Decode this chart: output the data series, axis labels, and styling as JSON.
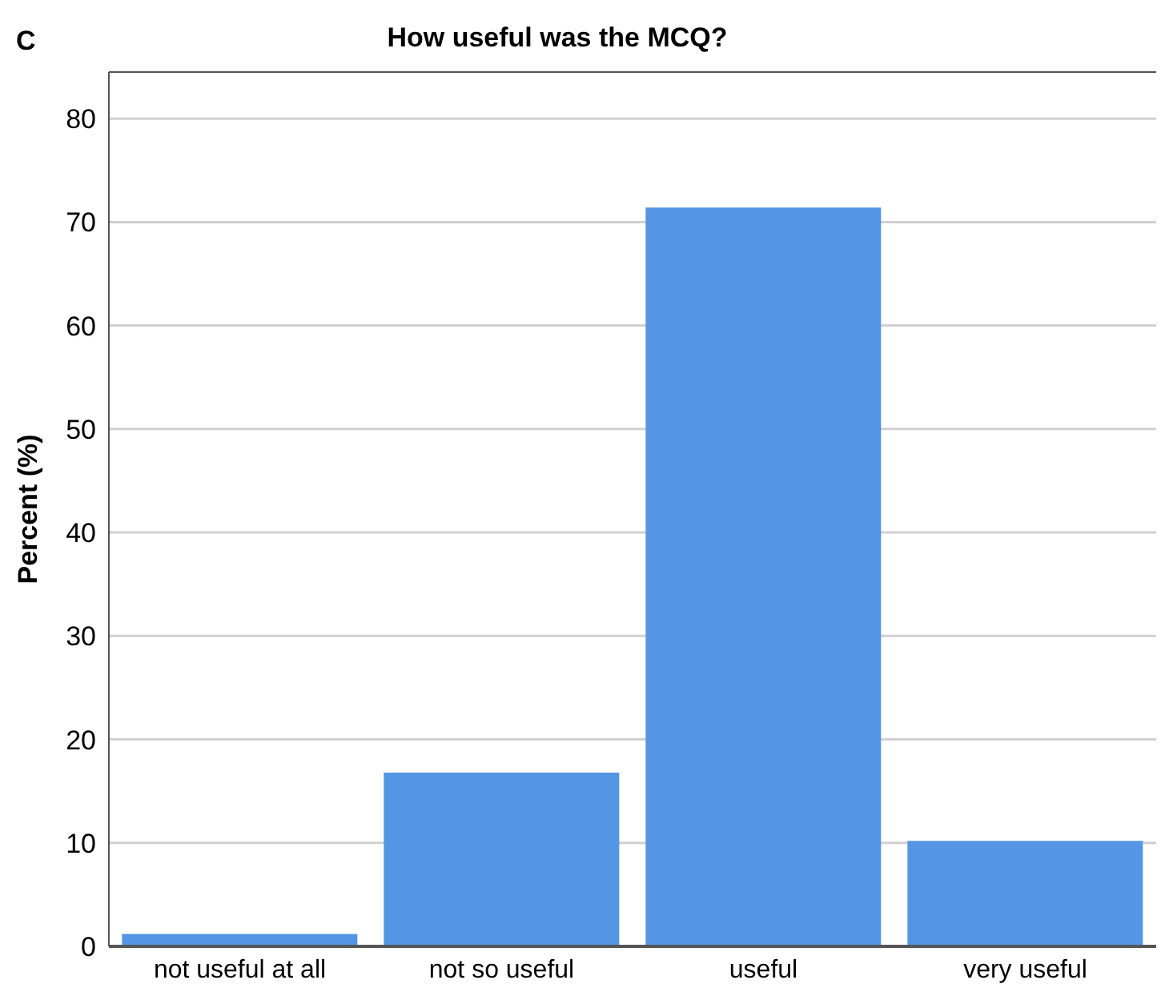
{
  "chart_data": {
    "type": "bar",
    "title": "How useful was the MCQ?",
    "annotations": [
      "C"
    ],
    "ylabel": "Percent (%)",
    "categories": [
      "not useful at all",
      "not so useful",
      "useful",
      "very useful"
    ],
    "values": [
      1.2,
      16.8,
      71.4,
      10.2
    ],
    "color": "#5596e4",
    "ylim": [
      0,
      84.5
    ],
    "yticks": [
      0,
      10,
      20,
      30,
      40,
      50,
      60,
      70,
      80
    ],
    "grid": "y"
  }
}
